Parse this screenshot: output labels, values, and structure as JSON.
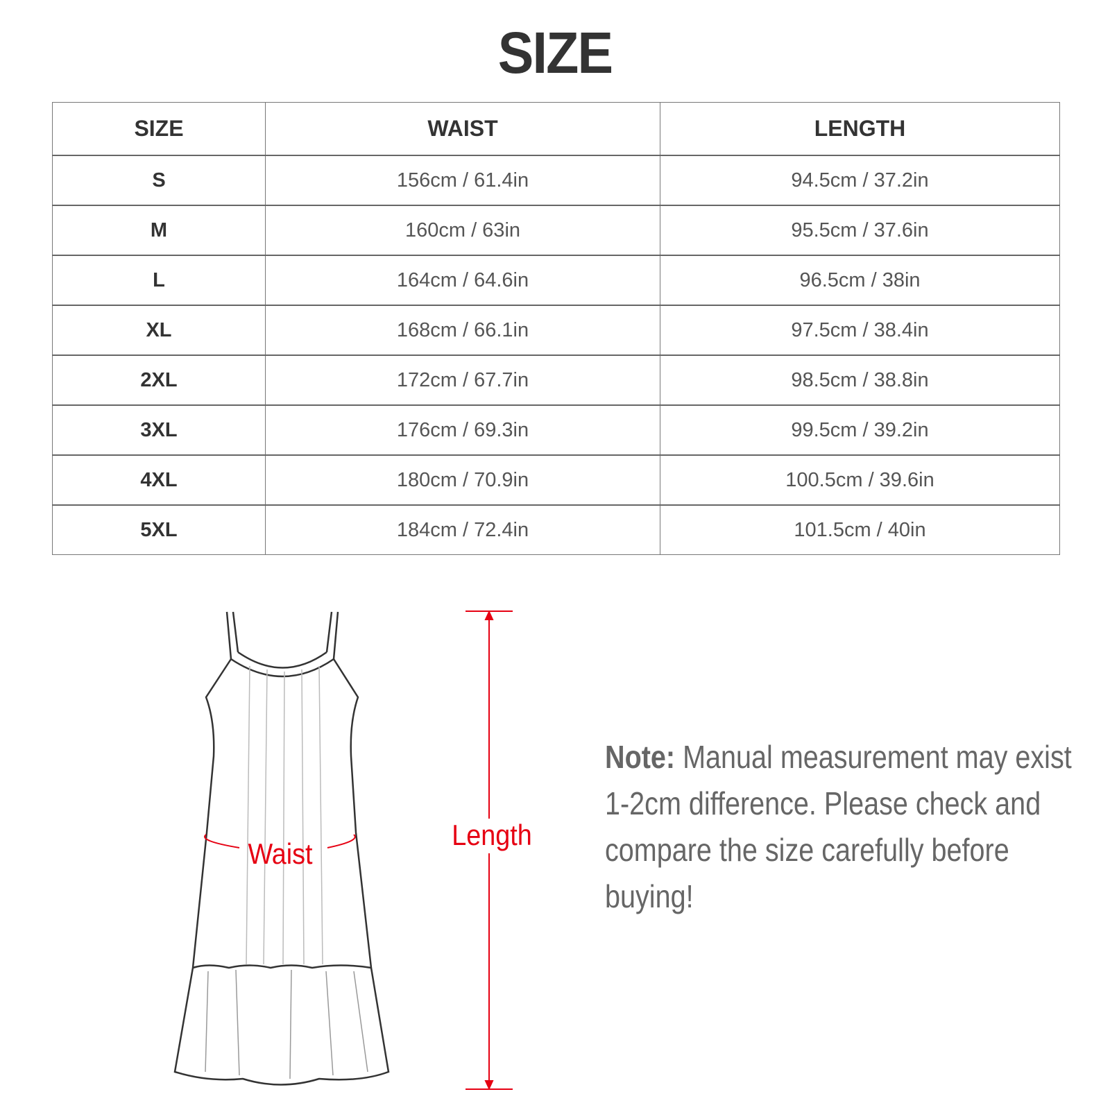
{
  "title": "SIZE",
  "table": {
    "headers": [
      "SIZE",
      "WAIST",
      "LENGTH"
    ],
    "rows": [
      [
        "S",
        "156cm / 61.4in",
        "94.5cm / 37.2in"
      ],
      [
        "M",
        "160cm / 63in",
        "95.5cm / 37.6in"
      ],
      [
        "L",
        "164cm / 64.6in",
        "96.5cm / 38in"
      ],
      [
        "XL",
        "168cm / 66.1in",
        "97.5cm / 38.4in"
      ],
      [
        "2XL",
        "172cm / 67.7in",
        "98.5cm / 38.8in"
      ],
      [
        "3XL",
        "176cm / 69.3in",
        "99.5cm / 39.2in"
      ],
      [
        "4XL",
        "180cm / 70.9in",
        "100.5cm / 39.6in"
      ],
      [
        "5XL",
        "184cm / 72.4in",
        "101.5cm / 40in"
      ]
    ]
  },
  "diagram": {
    "waist_label": "Waist",
    "length_label": "Length",
    "accent": "#e60012"
  },
  "note": {
    "label": "Note:",
    "text": " Manual measurement may exist 1-2cm difference. Please check and compare the size carefully before buying!"
  }
}
